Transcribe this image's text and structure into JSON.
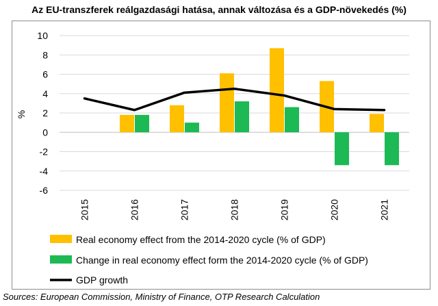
{
  "chart_data": {
    "type": "bar",
    "title": "Az EU-transzferek reálgazdasági hatása, annak változása és a GDP-növekedés (%)",
    "xlabel": "",
    "ylabel": "%",
    "ylim": [
      -6,
      10
    ],
    "yticks": [
      10,
      8,
      6,
      4,
      2,
      0,
      -2,
      -4,
      -6
    ],
    "categories": [
      "2015",
      "2016",
      "2017",
      "2018",
      "2019",
      "2020",
      "2021"
    ],
    "series": [
      {
        "name": "Real economy effect from the 2014-2020 cycle (% of GDP)",
        "kind": "bar",
        "color": "#FFC000",
        "values": [
          null,
          1.8,
          2.8,
          6.1,
          8.7,
          5.3,
          1.9
        ]
      },
      {
        "name": "Change in real economy effect form the 2014-2020 cycle (% of GDP)",
        "kind": "bar",
        "color": "#1DB954",
        "values": [
          null,
          1.8,
          1.0,
          3.2,
          2.6,
          -3.4,
          -3.4
        ]
      },
      {
        "name": "GDP growth",
        "kind": "line",
        "color": "#000000",
        "values": [
          3.5,
          2.3,
          4.1,
          4.5,
          3.8,
          2.4,
          2.3
        ]
      }
    ],
    "legend_position": "bottom"
  },
  "source": "Sources: European Commission, Ministry of Finance, OTP Research Calculation"
}
